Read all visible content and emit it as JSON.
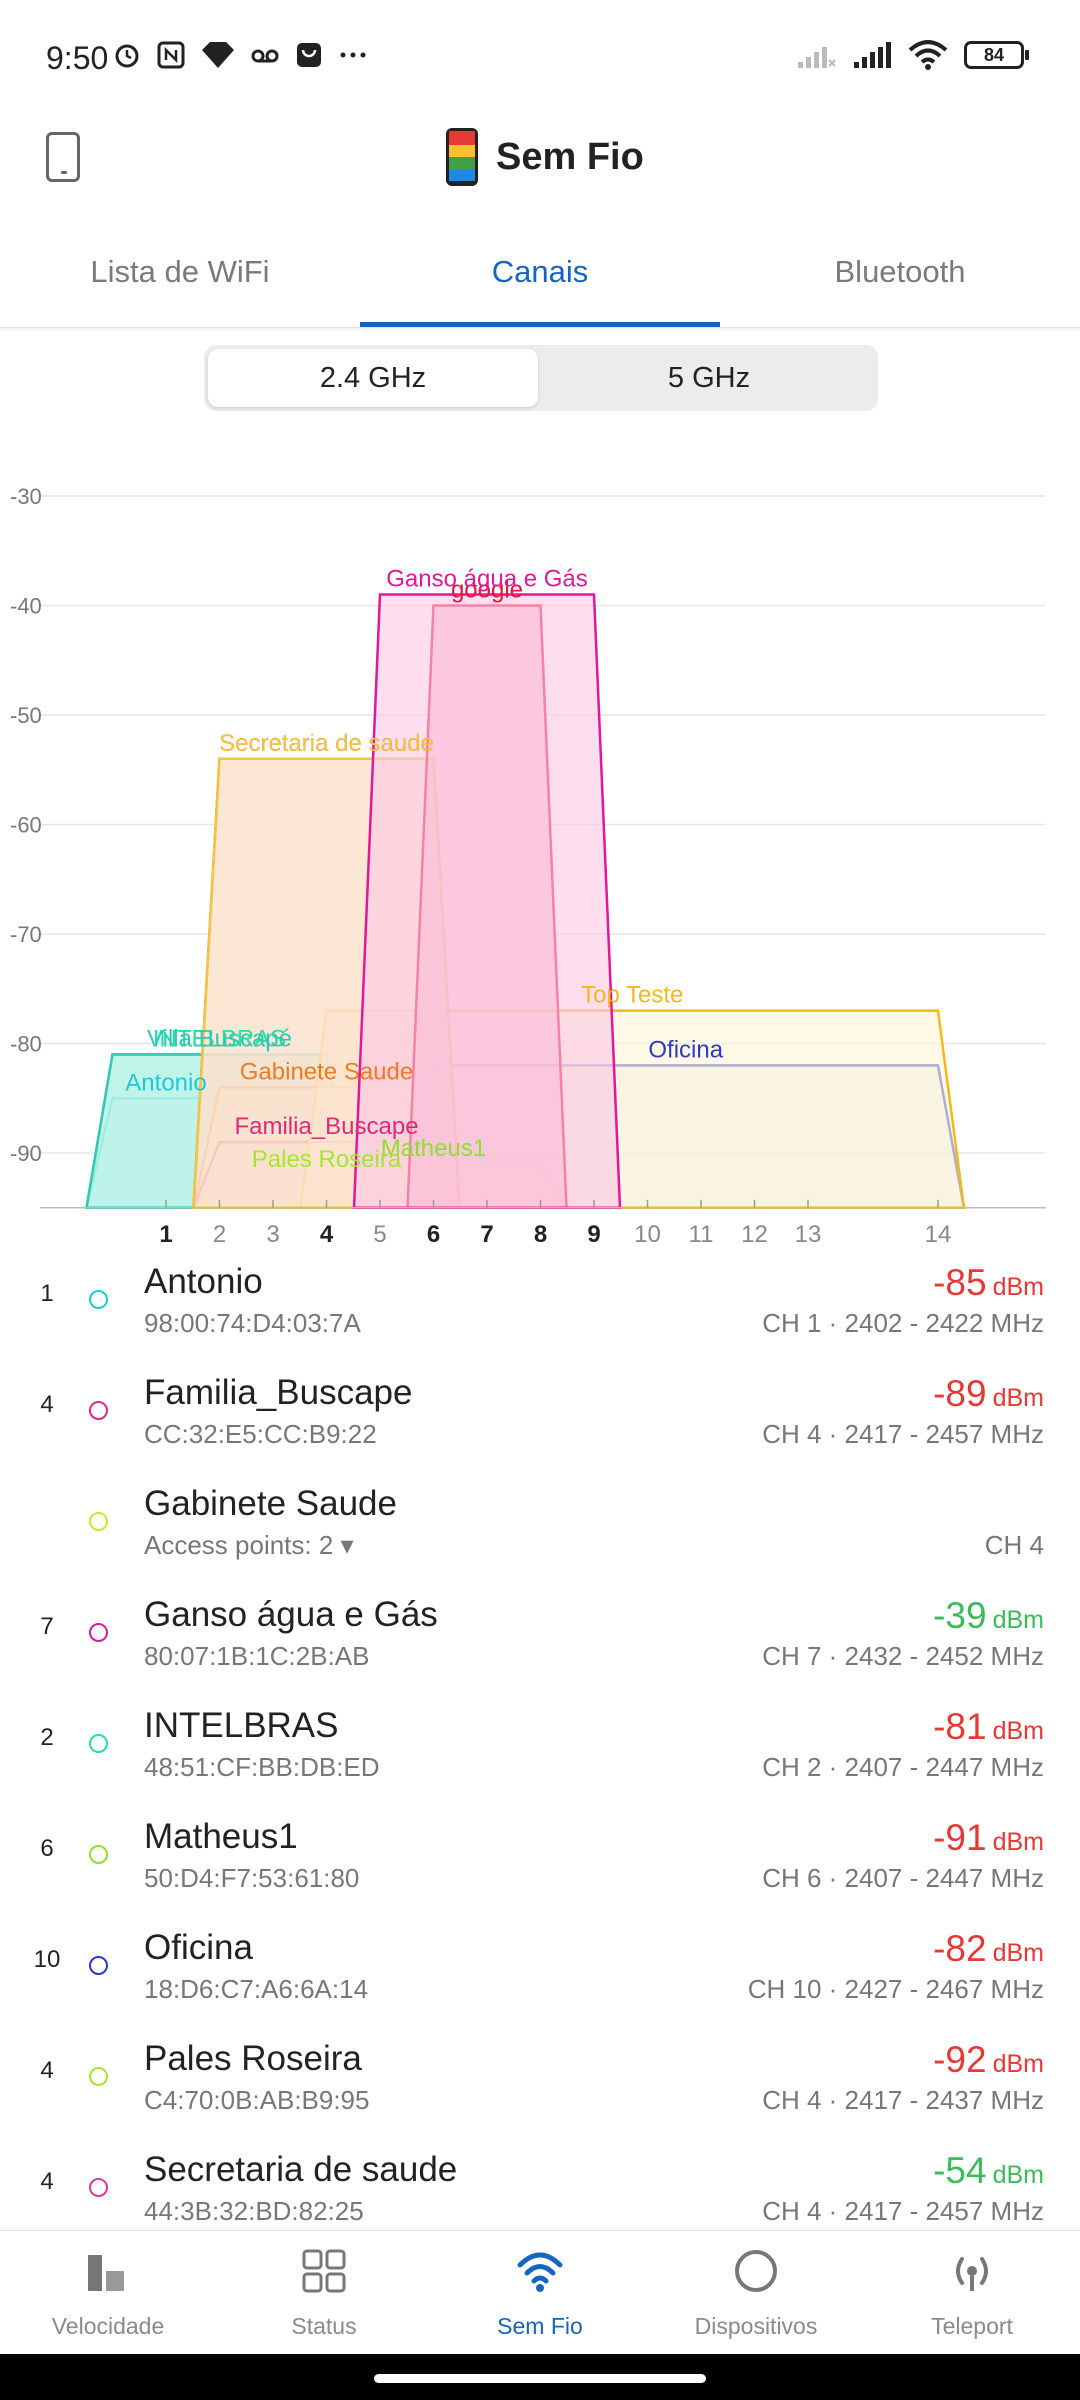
{
  "status_bar": {
    "time": "9:50",
    "battery": "84",
    "left_icons": [
      "alarm-icon",
      "nfc-icon",
      "diamond-icon",
      "voicemail-icon",
      "shopping-bag-icon",
      "more-icon"
    ],
    "right_icons": [
      "no-signal-icon",
      "signal-icon",
      "wifi-icon",
      "battery-icon"
    ]
  },
  "app_bar": {
    "title": "Sem Fio",
    "left_icon": "phone-icon",
    "logo_icon": "app-logo-icon"
  },
  "tabs": [
    {
      "label": "Lista de WiFi",
      "active": false
    },
    {
      "label": "Canais",
      "active": true
    },
    {
      "label": "Bluetooth",
      "active": false
    }
  ],
  "band_selector": {
    "options": [
      "2.4 GHz",
      "5 GHz"
    ],
    "selected": "2.4 GHz"
  },
  "chart_data": {
    "type": "area",
    "title": "",
    "xlabel": "",
    "ylabel": "",
    "ylim": [
      -95,
      -30
    ],
    "y_ticks": [
      "-30",
      "-40",
      "-50",
      "-60",
      "-70",
      "-80",
      "-90"
    ],
    "x_ticks": [
      "1",
      "2",
      "3",
      "4",
      "5",
      "6",
      "7",
      "8",
      "9",
      "10",
      "11",
      "12",
      "13",
      "14"
    ],
    "bold_x_ticks": [
      "1",
      "4",
      "6",
      "7",
      "8",
      "9"
    ],
    "grid": true,
    "series": [
      {
        "name": "Antonio",
        "ch_from": 0,
        "ch_to": 2,
        "dbm": -85,
        "color": "#1ec8d8",
        "fill": "#d4f7fb"
      },
      {
        "name": "INTELBRAS",
        "ch_from": 0,
        "ch_to": 4,
        "dbm": -81,
        "color": "#1de2a0",
        "fill": "#b6f5dd"
      },
      {
        "name": "Villa Buscapé",
        "ch_from": 0,
        "ch_to": 4,
        "dbm": -81,
        "color": "#31c8b8",
        "fill": "#b6f0e8"
      },
      {
        "name": "Matheus1",
        "ch_from": 4,
        "ch_to": 8,
        "dbm": -91,
        "color": "#8ee02a",
        "fill": "#e0f6c0"
      },
      {
        "name": "Pales Roseira",
        "ch_from": 2,
        "ch_to": 6,
        "dbm": -92,
        "color": "#a4e62e",
        "fill": "#e6f8c8"
      },
      {
        "name": "Gabinete Saude",
        "ch_from": 2,
        "ch_to": 6,
        "dbm": -84,
        "color": "#f07a22",
        "fill": "#fde5cf"
      },
      {
        "name": "Familia_Buscape",
        "ch_from": 2,
        "ch_to": 6,
        "dbm": -89,
        "color": "#e0287e",
        "fill": "#f9d0e0"
      },
      {
        "name": "Oficina",
        "ch_from": 6,
        "ch_to": 14,
        "dbm": -82,
        "color": "#2d37c8",
        "fill": "#e6e6ec"
      },
      {
        "name": "Top Teste",
        "ch_from": 4,
        "ch_to": 14,
        "dbm": -77,
        "color": "#f5b81c",
        "fill": "#fff5d6"
      },
      {
        "name": "Secretaria de saude",
        "ch_from": 2,
        "ch_to": 6,
        "dbm": -54,
        "color": "#d63aa6",
        "fill": "#fcd8d8"
      },
      {
        "name": "Secretaria de saude",
        "ch_from": 2,
        "ch_to": 6,
        "dbm": -54,
        "color": "#f2c53d",
        "fill": "#fce5c8"
      },
      {
        "name": "google",
        "ch_from": 6,
        "ch_to": 8,
        "dbm": -40,
        "color": "#e5143a",
        "fill": "#f8a8c4"
      },
      {
        "name": "Ganso água e Gás",
        "ch_from": 5,
        "ch_to": 9,
        "dbm": -39,
        "color": "#e0189a",
        "fill": "#fcc8e4"
      }
    ]
  },
  "ap_list": [
    {
      "ch": "1",
      "name": "Antonio",
      "mac": "98:00:74:D4:03:7A",
      "signal": "-85",
      "unit": "dBm",
      "info": "CH 1 · 2402 - 2422 MHz",
      "dot_color": "#1ec8d8",
      "signal_color": "#e53935"
    },
    {
      "ch": "4",
      "name": "Familia_Buscape",
      "mac": "CC:32:E5:CC:B9:22",
      "signal": "-89",
      "unit": "dBm",
      "info": "CH 4 · 2417 - 2457 MHz",
      "dot_color": "#e0287e",
      "signal_color": "#e53935"
    },
    {
      "ch": "",
      "name": "Gabinete Saude",
      "mac": "Access points: 2 ▾",
      "signal": "",
      "unit": "",
      "info": "CH 4",
      "dot_color": "#c8e632",
      "signal_color": "#e53935"
    },
    {
      "ch": "7",
      "name": "Ganso água e Gás",
      "mac": "80:07:1B:1C:2B:AB",
      "signal": "-39",
      "unit": "dBm",
      "info": "CH 7 · 2432 - 2452 MHz",
      "dot_color": "#e0189a",
      "signal_color": "#3cbb5a"
    },
    {
      "ch": "2",
      "name": "INTELBRAS",
      "mac": "48:51:CF:BB:DB:ED",
      "signal": "-81",
      "unit": "dBm",
      "info": "CH 2 · 2407 - 2447 MHz",
      "dot_color": "#1de2a0",
      "signal_color": "#e53935"
    },
    {
      "ch": "6",
      "name": "Matheus1",
      "mac": "50:D4:F7:53:61:80",
      "signal": "-91",
      "unit": "dBm",
      "info": "CH 6 · 2407 - 2447 MHz",
      "dot_color": "#8ee02a",
      "signal_color": "#e53935"
    },
    {
      "ch": "10",
      "name": "Oficina",
      "mac": "18:D6:C7:A6:6A:14",
      "signal": "-82",
      "unit": "dBm",
      "info": "CH 10 · 2427 - 2467 MHz",
      "dot_color": "#2d37c8",
      "signal_color": "#e53935"
    },
    {
      "ch": "4",
      "name": "Pales Roseira",
      "mac": "C4:70:0B:AB:B9:95",
      "signal": "-92",
      "unit": "dBm",
      "info": "CH 4 · 2417 - 2437 MHz",
      "dot_color": "#a4e62e",
      "signal_color": "#e53935"
    },
    {
      "ch": "4",
      "name": "Secretaria de saude",
      "mac": "44:3B:32:BD:82:25",
      "signal": "-54",
      "unit": "dBm",
      "info": "CH 4 · 2417 - 2457 MHz",
      "dot_color": "#d63aa6",
      "signal_color": "#3cbb5a"
    }
  ],
  "bottom_nav": [
    {
      "label": "Velocidade",
      "icon": "speed-bars-icon",
      "active": false
    },
    {
      "label": "Status",
      "icon": "grid-icon",
      "active": false
    },
    {
      "label": "Sem Fio",
      "icon": "wifi-icon",
      "active": true
    },
    {
      "label": "Dispositivos",
      "icon": "circle-icon",
      "active": false
    },
    {
      "label": "Teleport",
      "icon": "teleport-icon",
      "active": false
    }
  ]
}
